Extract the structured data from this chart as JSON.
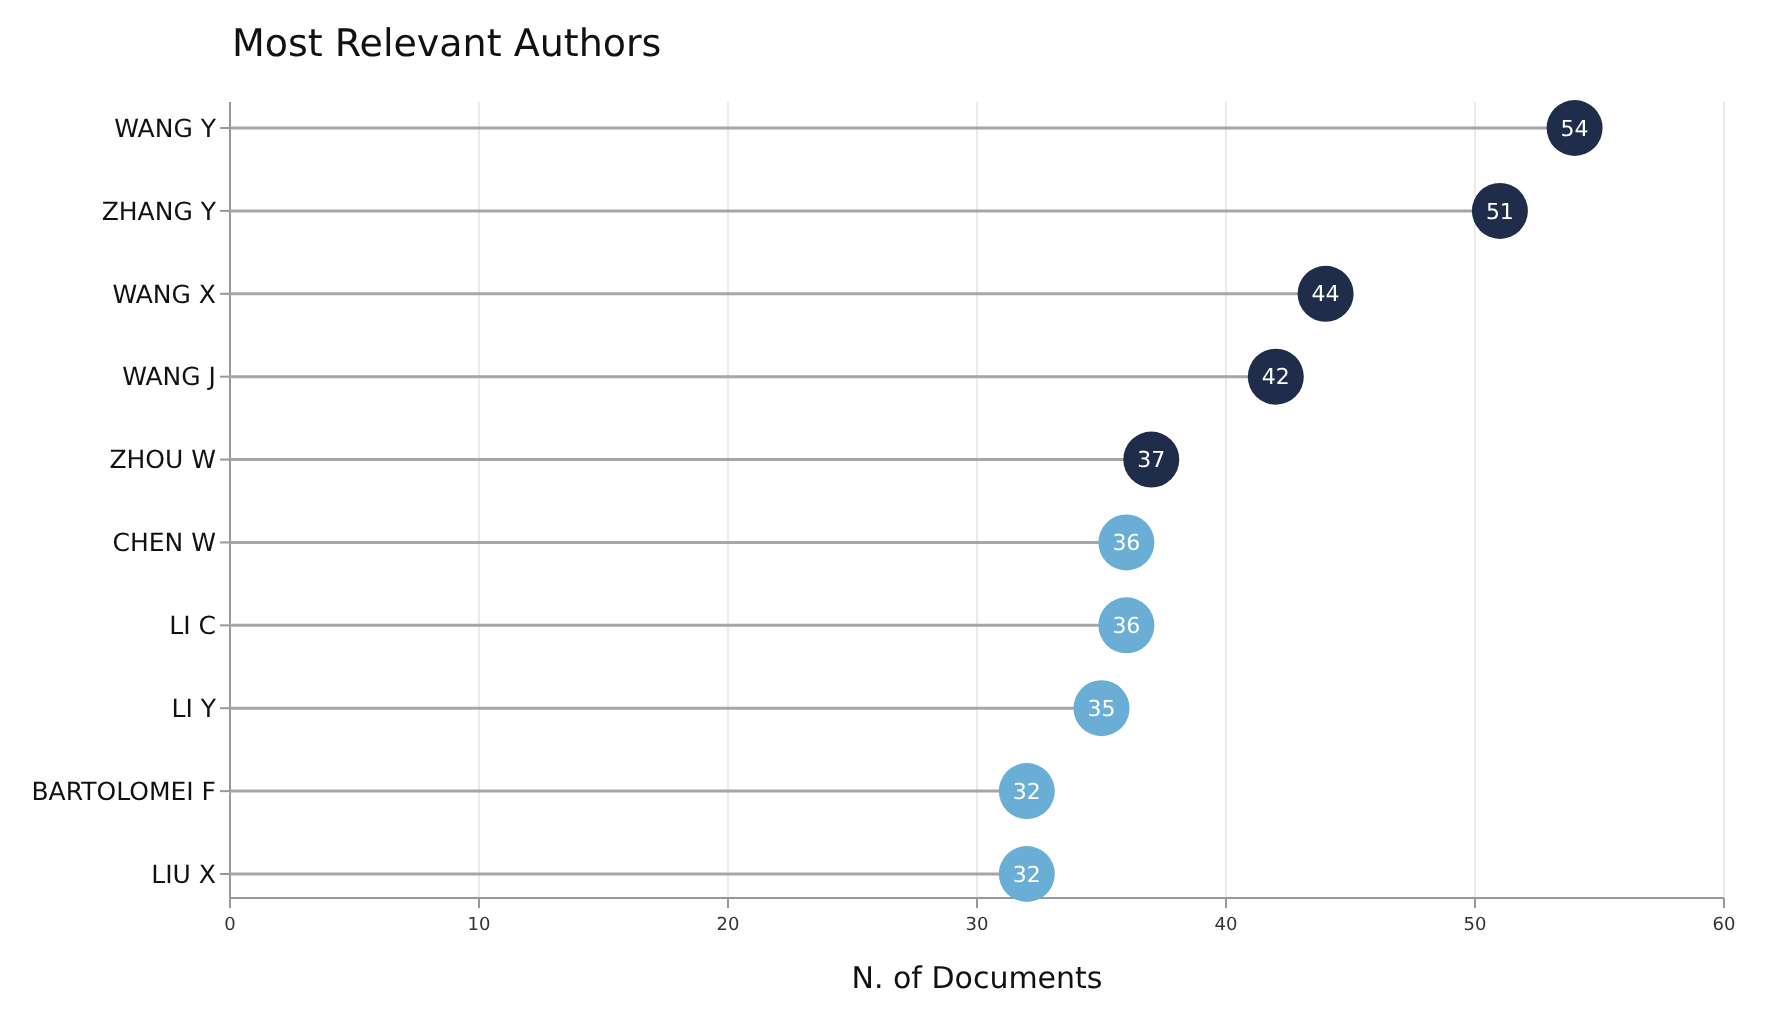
{
  "chart_data": {
    "type": "lollipop",
    "orientation": "horizontal",
    "title": "Most Relevant Authors",
    "xlabel": "N. of Documents",
    "categories": [
      "WANG Y",
      "ZHANG Y",
      "WANG X",
      "WANG J",
      "ZHOU W",
      "CHEN W",
      "LI C",
      "LI Y",
      "BARTOLOMEI F",
      "LIU X"
    ],
    "values": [
      54,
      51,
      44,
      42,
      37,
      36,
      36,
      35,
      32,
      32
    ],
    "colors": [
      "#1f2d4a",
      "#1f2d4a",
      "#1f2d4a",
      "#1f2d4a",
      "#1f2d4a",
      "#6aaed6",
      "#6aaed6",
      "#6aaed6",
      "#6aaed6",
      "#6aaed6"
    ],
    "xlim": [
      0,
      60
    ],
    "xticks": [
      0,
      10,
      20,
      30,
      40,
      50,
      60
    ],
    "grid": "x",
    "data_labels": true
  }
}
